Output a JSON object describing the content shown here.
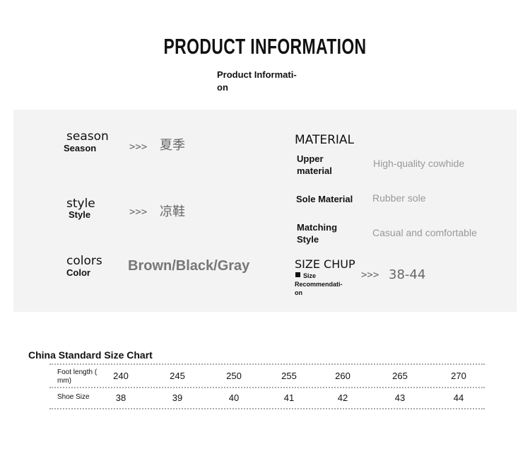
{
  "header": {
    "title": "PRODUCT INFORMATION",
    "subtitle": "Product Informati-\non"
  },
  "left_specs": [
    {
      "heading": "season",
      "label": "Season",
      "arrow": ">>>",
      "value": "夏季"
    },
    {
      "heading": "style",
      "label": "Style",
      "arrow": ">>>",
      "value": "凉鞋"
    },
    {
      "heading": "colors",
      "label": "Color",
      "value": "Brown/Black/Gray"
    }
  ],
  "right_specs": {
    "heading": "MATERIAL",
    "rows": [
      {
        "label": "Upper\nmaterial",
        "value": "High-quality cowhide"
      },
      {
        "label": "Sole Material",
        "value": "Rubber sole"
      },
      {
        "label": "Matching\nStyle",
        "value": "Casual and comfortable"
      }
    ],
    "size": {
      "heading": "SIZE CHUP",
      "note": "Size\nRecommendati-\non",
      "arrow": ">>>",
      "value": "38-44"
    }
  },
  "table": {
    "title": "China Standard Size Chart",
    "rows": [
      {
        "label": "Foot length (\nmm)",
        "cells": [
          "240",
          "245",
          "250",
          "255",
          "260",
          "265",
          "270"
        ]
      },
      {
        "label": "Shoe Size",
        "cells": [
          "38",
          "39",
          "40",
          "41",
          "42",
          "43",
          "44"
        ]
      }
    ]
  }
}
